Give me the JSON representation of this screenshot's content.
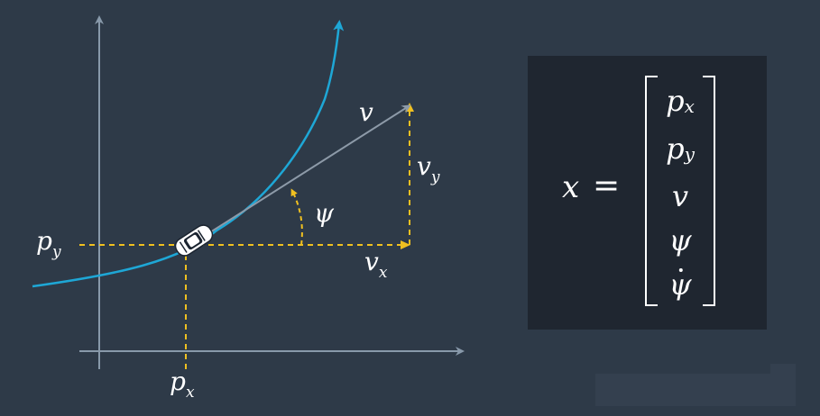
{
  "diagram": {
    "labels": {
      "py": "p",
      "py_sub": "y",
      "px": "p",
      "px_sub": "x",
      "v": "v",
      "vy": "v",
      "vy_sub": "y",
      "vx": "v",
      "vx_sub": "x",
      "psi": "ψ"
    },
    "colors": {
      "background": "#2e3a48",
      "axes": "#8899aa",
      "trajectory": "#1ea7d6",
      "dashed": "#f0c020",
      "velocity_arrow": "#8d9aa8"
    }
  },
  "equation": {
    "lhs": "x",
    "equals": "=",
    "entries": [
      {
        "base": "p",
        "sub": "x"
      },
      {
        "base": "p",
        "sub": "y"
      },
      {
        "base": "v",
        "sub": ""
      },
      {
        "base": "ψ",
        "sub": ""
      },
      {
        "base": "ψ",
        "sub": "",
        "dot": true
      }
    ]
  }
}
